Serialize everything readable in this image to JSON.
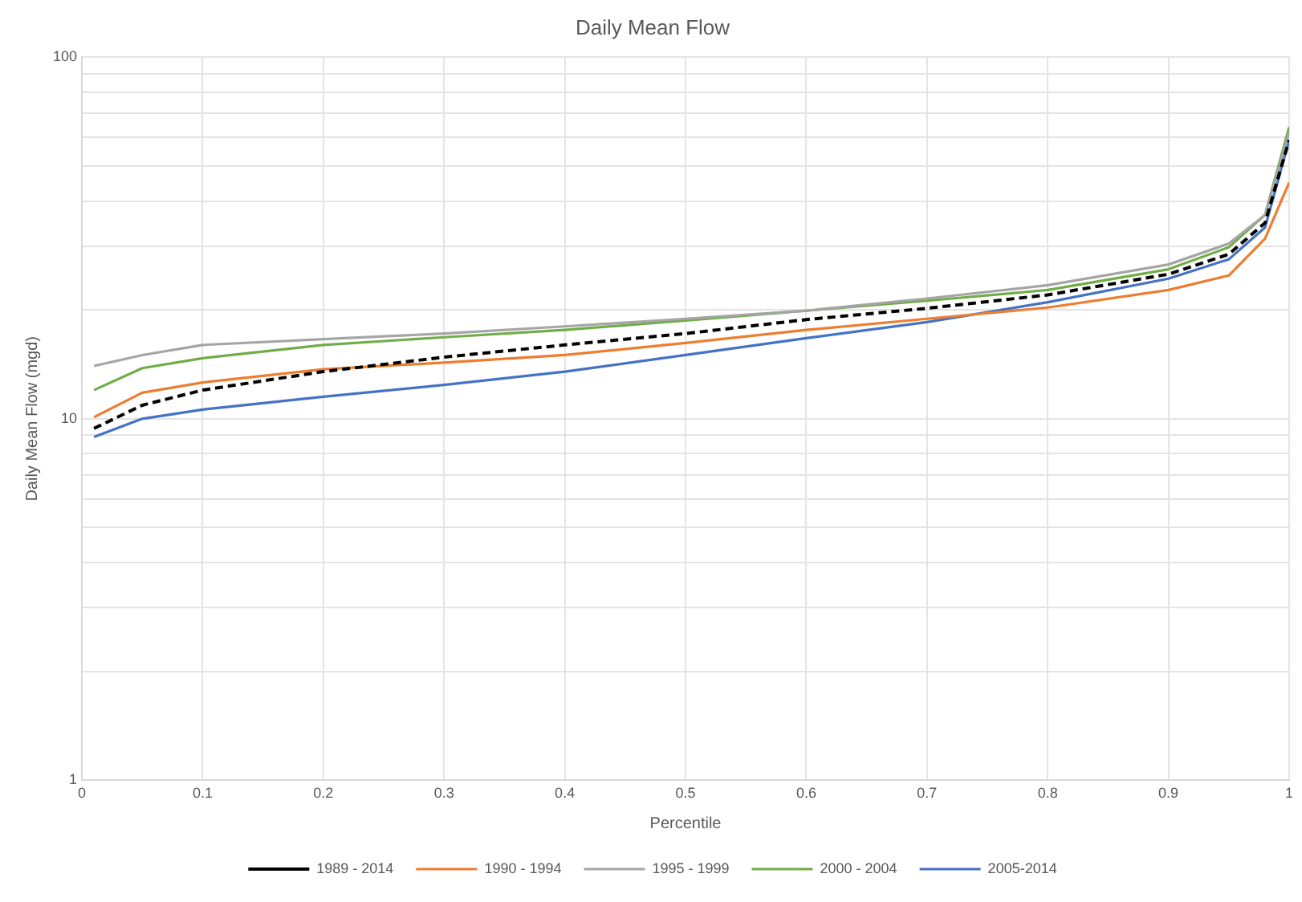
{
  "chart_data": {
    "type": "line",
    "title": "Daily Mean Flow",
    "xlabel": "Percentile",
    "ylabel": "Daily Mean Flow (mgd)",
    "x": [
      0.01,
      0.05,
      0.1,
      0.2,
      0.3,
      0.4,
      0.5,
      0.6,
      0.7,
      0.8,
      0.9,
      0.95,
      0.98,
      1
    ],
    "series": [
      {
        "name": "1989 - 2014",
        "color": "#000000",
        "line_style": "dashed",
        "values": [
          9.4,
          10.9,
          12.0,
          13.5,
          14.8,
          16.0,
          17.2,
          18.8,
          20.2,
          22.0,
          25.1,
          28.5,
          34.8,
          59
        ]
      },
      {
        "name": "1990 - 1994",
        "color": "#ed7d31",
        "values": [
          10.1,
          11.8,
          12.6,
          13.7,
          14.3,
          15.0,
          16.2,
          17.6,
          18.9,
          20.3,
          22.7,
          24.9,
          31.5,
          45
        ]
      },
      {
        "name": "1995 - 1999",
        "color": "#a5a5a5",
        "values": [
          14.0,
          15.0,
          16.0,
          16.6,
          17.2,
          18.0,
          18.9,
          19.9,
          21.5,
          23.4,
          26.7,
          30.5,
          36.6,
          62
        ]
      },
      {
        "name": "2000 - 2004",
        "color": "#70ad47",
        "values": [
          12.0,
          13.8,
          14.7,
          16.0,
          16.8,
          17.6,
          18.7,
          19.9,
          21.2,
          22.7,
          25.9,
          29.8,
          36.6,
          64
        ]
      },
      {
        "name": "2005-2014",
        "color": "#4472c4",
        "values": [
          8.9,
          10.0,
          10.6,
          11.5,
          12.4,
          13.5,
          15.0,
          16.7,
          18.5,
          21.0,
          24.4,
          27.6,
          33.8,
          59
        ]
      }
    ],
    "log": "y",
    "xlim": [
      0,
      1
    ],
    "xticks": [
      0,
      0.1,
      0.2,
      0.3,
      0.4,
      0.5,
      0.6,
      0.7,
      0.8,
      0.9,
      1
    ],
    "ylim": [
      1,
      100
    ],
    "yticks": [
      1,
      {
        "value": 2,
        "label": null
      },
      {
        "value": 3,
        "label": null
      },
      {
        "value": 4,
        "label": null
      },
      {
        "value": 5,
        "label": null
      },
      {
        "value": 6,
        "label": null
      },
      {
        "value": 7,
        "label": null
      },
      {
        "value": 8,
        "label": null
      },
      {
        "value": 9,
        "label": null
      },
      10,
      {
        "value": 20,
        "label": null
      },
      {
        "value": 30,
        "label": null
      },
      {
        "value": 40,
        "label": null
      },
      {
        "value": 50,
        "label": null
      },
      {
        "value": 60,
        "label": null
      },
      {
        "value": 70,
        "label": null
      },
      {
        "value": 80,
        "label": null
      },
      {
        "value": 90,
        "label": null
      },
      100
    ],
    "grid": true,
    "legend": "bottom",
    "marker": "none",
    "line_style": "solid"
  }
}
